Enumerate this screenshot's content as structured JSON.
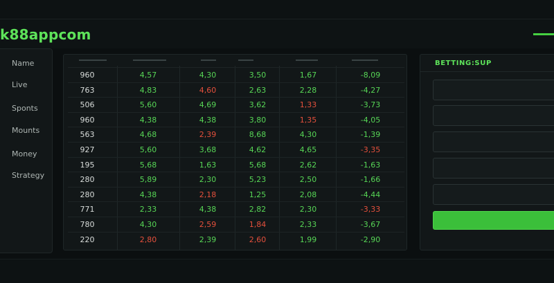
{
  "header": {
    "brand": "k88appcom"
  },
  "sidebar": {
    "items": [
      {
        "label": "Name"
      },
      {
        "label": "Live"
      },
      {
        "label": "Sponts"
      },
      {
        "label": "Mounts"
      },
      {
        "label": "Money"
      },
      {
        "label": "Strategy"
      }
    ]
  },
  "table": {
    "rows": [
      {
        "id": "960",
        "c1": "4,57",
        "c2": "4,30",
        "c3": "3,50",
        "c4": "1,67",
        "c5": "-8,09"
      },
      {
        "id": "763",
        "c1": "4,83",
        "c2": "4,60",
        "c3": "2,63",
        "c4": "2,28",
        "c5": "-4,27"
      },
      {
        "id": "506",
        "c1": "5,60",
        "c2": "4,69",
        "c3": "3,62",
        "c4": "1,33",
        "c5": "-3,73"
      },
      {
        "id": "960",
        "c1": "4,38",
        "c2": "4,38",
        "c3": "3,80",
        "c4": "1,35",
        "c5": "-4,05"
      },
      {
        "id": "563",
        "c1": "4,68",
        "c2": "2,39",
        "c3": "8,68",
        "c4": "4,30",
        "c5": "-1,39"
      },
      {
        "id": "927",
        "c1": "5,60",
        "c2": "3,68",
        "c3": "4,62",
        "c4": "4,65",
        "c5": "-3,35"
      },
      {
        "id": "195",
        "c1": "5,68",
        "c2": "1,63",
        "c3": "5,68",
        "c4": "2,62",
        "c5": "-1,63"
      },
      {
        "id": "280",
        "c1": "5,89",
        "c2": "2,30",
        "c3": "5,23",
        "c4": "2,50",
        "c5": "-1,66"
      },
      {
        "id": "280",
        "c1": "4,38",
        "c2": "2,18",
        "c3": "1,25",
        "c4": "2,08",
        "c5": "-4,44"
      },
      {
        "id": "771",
        "c1": "2,33",
        "c2": "4,38",
        "c3": "2,82",
        "c4": "2,30",
        "c5": "-3,33"
      },
      {
        "id": "780",
        "c1": "4,30",
        "c2": "2,59",
        "c3": "1,84",
        "c4": "2,33",
        "c5": "-3,67"
      },
      {
        "id": "220",
        "c1": "2,80",
        "c2": "2,39",
        "c3": "2,60",
        "c4": "1,99",
        "c5": "-2,90"
      }
    ],
    "colors": {
      "green": "#57d656",
      "red": "#e5503c",
      "white": "#d8dcda"
    },
    "row_colors": [
      [
        "white",
        "green",
        "green",
        "green",
        "green",
        "green"
      ],
      [
        "white",
        "green",
        "red",
        "green",
        "green",
        "green"
      ],
      [
        "white",
        "green",
        "green",
        "green",
        "red",
        "green"
      ],
      [
        "white",
        "green",
        "green",
        "green",
        "red",
        "green"
      ],
      [
        "white",
        "green",
        "red",
        "green",
        "green",
        "green"
      ],
      [
        "white",
        "green",
        "green",
        "green",
        "green",
        "red"
      ],
      [
        "white",
        "green",
        "green",
        "green",
        "green",
        "green"
      ],
      [
        "white",
        "green",
        "green",
        "green",
        "green",
        "green"
      ],
      [
        "white",
        "green",
        "red",
        "green",
        "green",
        "green"
      ],
      [
        "white",
        "green",
        "green",
        "green",
        "green",
        "red"
      ],
      [
        "white",
        "green",
        "red",
        "red",
        "green",
        "green"
      ],
      [
        "white",
        "red",
        "green",
        "red",
        "green",
        "green"
      ]
    ]
  },
  "betting": {
    "title": "BETTING:SUP",
    "inputs": [
      "",
      "",
      "",
      "",
      ""
    ],
    "submit_label": ""
  },
  "theme": {
    "accent": "#5ee35a",
    "background": "#0b0f10",
    "panel": "#121718"
  }
}
